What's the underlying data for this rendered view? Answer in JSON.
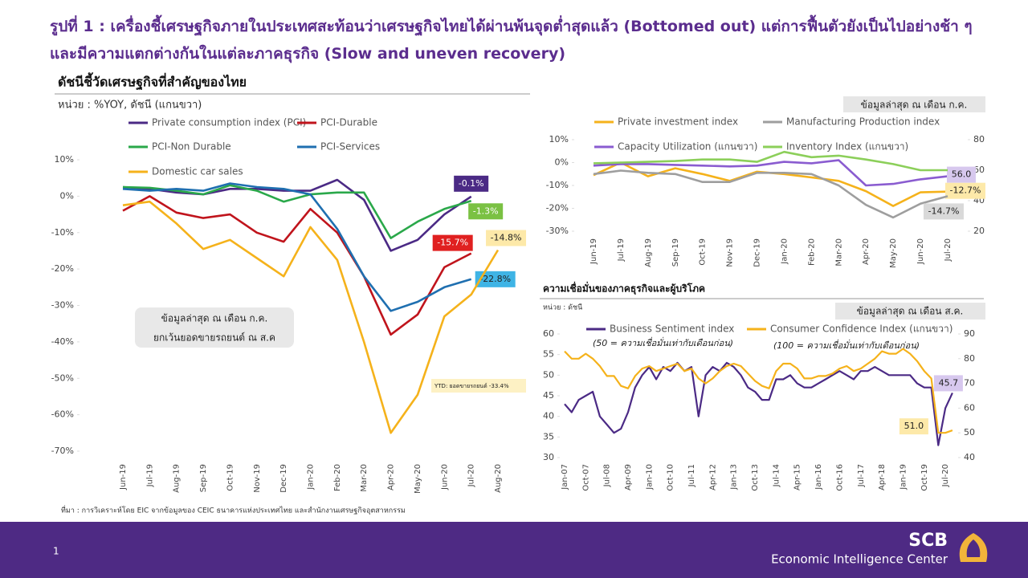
{
  "header": {
    "title": "รูปที่ 1 : เครื่องชี้เศรษฐกิจภายในประเทศสะท้อนว่าเศรษฐกิจไทยได้ผ่านพ้นจุดต่ำสุดแล้ว (Bottomed out) แต่การฟื้นตัวยังเป็นไปอย่างช้า ๆ และมีความแตกต่างกันในแต่ละภาคธุรกิจ (Slow and uneven recovery)"
  },
  "chart_data": [
    {
      "type": "line",
      "title": "ดัชนีชี้วัดเศรษฐกิจที่สำคัญของไทย",
      "unit": "หน่วย : %YOY, ดัชนี (แกนขวา)",
      "notes": [
        "ข้อมูลล่าสุด ณ เดือน ก.ค.",
        "ยกเว้นยอดขายรถยนต์ ณ ส.ค"
      ],
      "annotation": "YTD: ยอดขายรถยนต์ -33.4%",
      "categories": [
        "Jun-19",
        "Jul-19",
        "Aug-19",
        "Sep-19",
        "Oct-19",
        "Nov-19",
        "Dec-19",
        "Jan-20",
        "Feb-20",
        "Mar-20",
        "Apr-20",
        "May-20",
        "Jun-20",
        "Jul-20",
        "Aug-20"
      ],
      "series": [
        {
          "name": "Private consumption index (PCI)",
          "color": "#4b2a85",
          "values": [
            2.5,
            2,
            1,
            0.5,
            2,
            2,
            1.5,
            1.5,
            4.5,
            -1,
            -15,
            -12,
            -5,
            -0.1,
            null
          ],
          "value_labels": [
            null,
            null,
            null,
            null,
            null,
            null,
            null,
            null,
            null,
            null,
            null,
            null,
            null,
            "-0.1%",
            null
          ]
        },
        {
          "name": "PCI-Durable",
          "color": "#c0141c",
          "values": [
            -4,
            0,
            -4.5,
            -6,
            -5,
            -10,
            -12.5,
            -3.5,
            -10,
            -22,
            -38,
            -32.5,
            -19.5,
            -15.7,
            null
          ],
          "value_labels": [
            null,
            null,
            null,
            null,
            null,
            null,
            null,
            null,
            null,
            null,
            null,
            null,
            null,
            "-15.7%",
            null
          ]
        },
        {
          "name": "PCI-Non Durable",
          "color": "#2aa84a",
          "values": [
            2.5,
            2.3,
            1.5,
            0.5,
            3,
            1.5,
            -1.5,
            0.5,
            1,
            1,
            -11.5,
            -7,
            -3.5,
            -1.3,
            null
          ],
          "value_labels": [
            null,
            null,
            null,
            null,
            null,
            null,
            null,
            null,
            null,
            null,
            null,
            null,
            null,
            "-1.3%",
            null
          ]
        },
        {
          "name": "PCI-Services",
          "color": "#1f6fb0",
          "values": [
            2,
            1.5,
            2,
            1.5,
            3.5,
            2.5,
            2,
            0.5,
            -9,
            -22,
            -31.5,
            -29,
            -25,
            -22.8,
            null
          ],
          "value_labels": [
            null,
            null,
            null,
            null,
            null,
            null,
            null,
            null,
            null,
            null,
            null,
            null,
            null,
            "-22.8%",
            null
          ]
        },
        {
          "name": "Domestic car sales",
          "color": "#f5b21b",
          "values": [
            -2.5,
            -1.5,
            -7.5,
            -14.5,
            -12,
            -17,
            -22,
            -8.5,
            -17.5,
            -40,
            -65,
            -54.5,
            -33,
            -27,
            -14.8
          ],
          "value_labels": [
            null,
            null,
            null,
            null,
            null,
            null,
            null,
            null,
            null,
            null,
            null,
            null,
            null,
            null,
            "-14.8%"
          ]
        }
      ],
      "ylim": [
        -70,
        10
      ],
      "yticks": [
        {
          "value": 10,
          "label": "10%"
        },
        {
          "value": 0,
          "label": "0%"
        },
        {
          "value": -10,
          "label": "-10%"
        },
        {
          "value": -20,
          "label": "-20%"
        },
        {
          "value": -30,
          "label": "-30%"
        },
        {
          "value": -40,
          "label": "-40%"
        },
        {
          "value": -50,
          "label": "-50%"
        },
        {
          "value": -60,
          "label": "-60%"
        },
        {
          "value": -70,
          "label": "-70%"
        }
      ]
    },
    {
      "type": "line",
      "note": "ข้อมูลล่าสุด ณ เดือน ก.ค.",
      "categories": [
        "Jun-19",
        "Jul-19",
        "Aug-19",
        "Sep-19",
        "Oct-19",
        "Nov-19",
        "Dec-19",
        "Jan-20",
        "Feb-20",
        "Mar-20",
        "Apr-20",
        "May-20",
        "Jun-20",
        "Jul-20"
      ],
      "series": [
        {
          "name": "Private investment index",
          "color": "#f5b21b",
          "values": [
            -5.5,
            0,
            -6,
            -2.5,
            -5,
            -8,
            -4,
            -5,
            -6.5,
            -8,
            -12.5,
            -19,
            -13,
            -12.7
          ],
          "value_labels": [
            null,
            null,
            null,
            null,
            null,
            null,
            null,
            null,
            null,
            null,
            null,
            null,
            null,
            "-12.7%"
          ]
        },
        {
          "name": "Manufacturing Production index",
          "color": "#9e9e9e",
          "values": [
            -5,
            -3.5,
            -4.5,
            -5,
            -8.5,
            -8.5,
            -4.5,
            -4.5,
            -5,
            -10,
            -18.5,
            -24,
            -18,
            -14.7
          ],
          "value_labels": [
            null,
            null,
            null,
            null,
            null,
            null,
            null,
            null,
            null,
            null,
            null,
            null,
            null,
            "-14.7%"
          ]
        },
        {
          "name": "Capacity Utilization (แกนขวา)",
          "color": "#8a5cd0",
          "axis": "y2",
          "values": [
            63,
            64,
            64,
            63.5,
            63,
            62.5,
            63,
            65.5,
            64.5,
            66.5,
            50,
            51,
            54,
            56
          ],
          "value_labels": [
            null,
            null,
            null,
            null,
            null,
            null,
            null,
            null,
            null,
            null,
            null,
            null,
            null,
            "56.0"
          ]
        },
        {
          "name": "Inventory Index (แกนขวา)",
          "color": "#8ccf5a",
          "axis": "y2",
          "values": [
            64.5,
            65,
            65.5,
            66,
            67,
            67,
            65.5,
            72,
            68.5,
            69.5,
            67,
            64,
            60,
            60
          ]
        }
      ],
      "ylim": [
        -30,
        10
      ],
      "yticks": [
        {
          "value": 10,
          "label": "10%"
        },
        {
          "value": 0,
          "label": "0%"
        },
        {
          "value": -10,
          "label": "-10%"
        },
        {
          "value": -20,
          "label": "-20%"
        },
        {
          "value": -30,
          "label": "-30%"
        }
      ],
      "y2lim": [
        20,
        80
      ],
      "y2ticks": [
        20,
        40,
        60,
        80
      ]
    },
    {
      "type": "line",
      "title": "ความเชื่อมั่นของภาคธุรกิจและผู้บริโภค",
      "unit": "หน่วย : ดัชนี",
      "note": "ข้อมูลล่าสุด ณ เดือน ส.ค.",
      "annotations": [
        "(50 = ความเชื่อมั่นเท่ากับเดือนก่อน)",
        "(100 = ความเชื่อมั่นเท่ากับเดือนก่อน)"
      ],
      "categories": [
        "Jan-07",
        null,
        null,
        "Oct-07",
        null,
        null,
        "Jul-08",
        null,
        null,
        "Apr-09",
        null,
        null,
        "Jan-10",
        null,
        null,
        "Oct-10",
        null,
        null,
        "Jul-11",
        null,
        null,
        "Apr-12",
        null,
        null,
        "Jan-13",
        null,
        null,
        "Oct-13",
        null,
        null,
        "Jul-14",
        null,
        null,
        "Apr-15",
        null,
        null,
        "Jan-16",
        null,
        null,
        "Oct-16",
        null,
        null,
        "Jul-17",
        null,
        null,
        "Apr-18",
        null,
        null,
        "Jan-19",
        null,
        null,
        "Oct-19",
        null,
        null,
        "Jul-20",
        null
      ],
      "series": [
        {
          "name": "Business Sentiment index",
          "color": "#4b2a85",
          "values": [
            43,
            41,
            44,
            45,
            46,
            40,
            38,
            36,
            37,
            41,
            47,
            50,
            52,
            49,
            52,
            51,
            53,
            51,
            52,
            40,
            50,
            52,
            51,
            53,
            52,
            50,
            47,
            46,
            44,
            44,
            49,
            49,
            50,
            48,
            47,
            47,
            48,
            49,
            50,
            51,
            50,
            49,
            51,
            51,
            52,
            51,
            50,
            50,
            50,
            50,
            48,
            47,
            47,
            33,
            42,
            45.7
          ],
          "value_labels": [
            null,
            null,
            null,
            null,
            null,
            null,
            null,
            null,
            null,
            null,
            null,
            null,
            null,
            null,
            null,
            null,
            null,
            null,
            null,
            null,
            null,
            null,
            null,
            null,
            null,
            null,
            null,
            null,
            null,
            null,
            null,
            null,
            null,
            null,
            null,
            null,
            null,
            null,
            null,
            null,
            null,
            null,
            null,
            null,
            null,
            null,
            null,
            null,
            null,
            null,
            null,
            null,
            null,
            null,
            null,
            "45.7"
          ]
        },
        {
          "name": "Consumer Confidence Index (แกนขวา)",
          "color": "#f5b21b",
          "axis": "y2",
          "values": [
            83,
            80,
            80,
            82,
            80,
            77,
            73,
            73,
            69,
            68,
            73,
            76,
            77,
            75,
            76,
            77,
            78,
            75,
            76,
            72,
            70,
            72,
            75,
            77,
            78,
            77,
            74,
            71,
            69,
            68,
            75,
            78,
            78,
            76,
            72,
            72,
            73,
            73,
            74,
            76,
            77,
            75,
            76,
            78,
            80,
            83,
            82,
            82,
            84,
            82,
            79,
            75,
            72,
            50,
            50,
            51.0
          ],
          "value_labels": [
            null,
            null,
            null,
            null,
            null,
            null,
            null,
            null,
            null,
            null,
            null,
            null,
            null,
            null,
            null,
            null,
            null,
            null,
            null,
            null,
            null,
            null,
            null,
            null,
            null,
            null,
            null,
            null,
            null,
            null,
            null,
            null,
            null,
            null,
            null,
            null,
            null,
            null,
            null,
            null,
            null,
            null,
            null,
            null,
            null,
            null,
            null,
            null,
            null,
            null,
            null,
            null,
            null,
            null,
            null,
            "51.0"
          ]
        }
      ],
      "ylim": [
        30,
        60
      ],
      "yticks": [
        30,
        35,
        40,
        45,
        50,
        55,
        60
      ],
      "y2lim": [
        40,
        90
      ],
      "y2ticks": [
        40,
        50,
        60,
        70,
        80,
        90
      ]
    }
  ],
  "footer": {
    "source": "ที่มา : การวิเคราะห์โดย EIC จากข้อมูลของ CEIC ธนาคารแห่งประเทศไทย และสำนักงานเศรษฐกิจอุตสาหกรรม",
    "page": "1",
    "brand": "SCB",
    "brand_sub": "Economic Intelligence Center"
  }
}
